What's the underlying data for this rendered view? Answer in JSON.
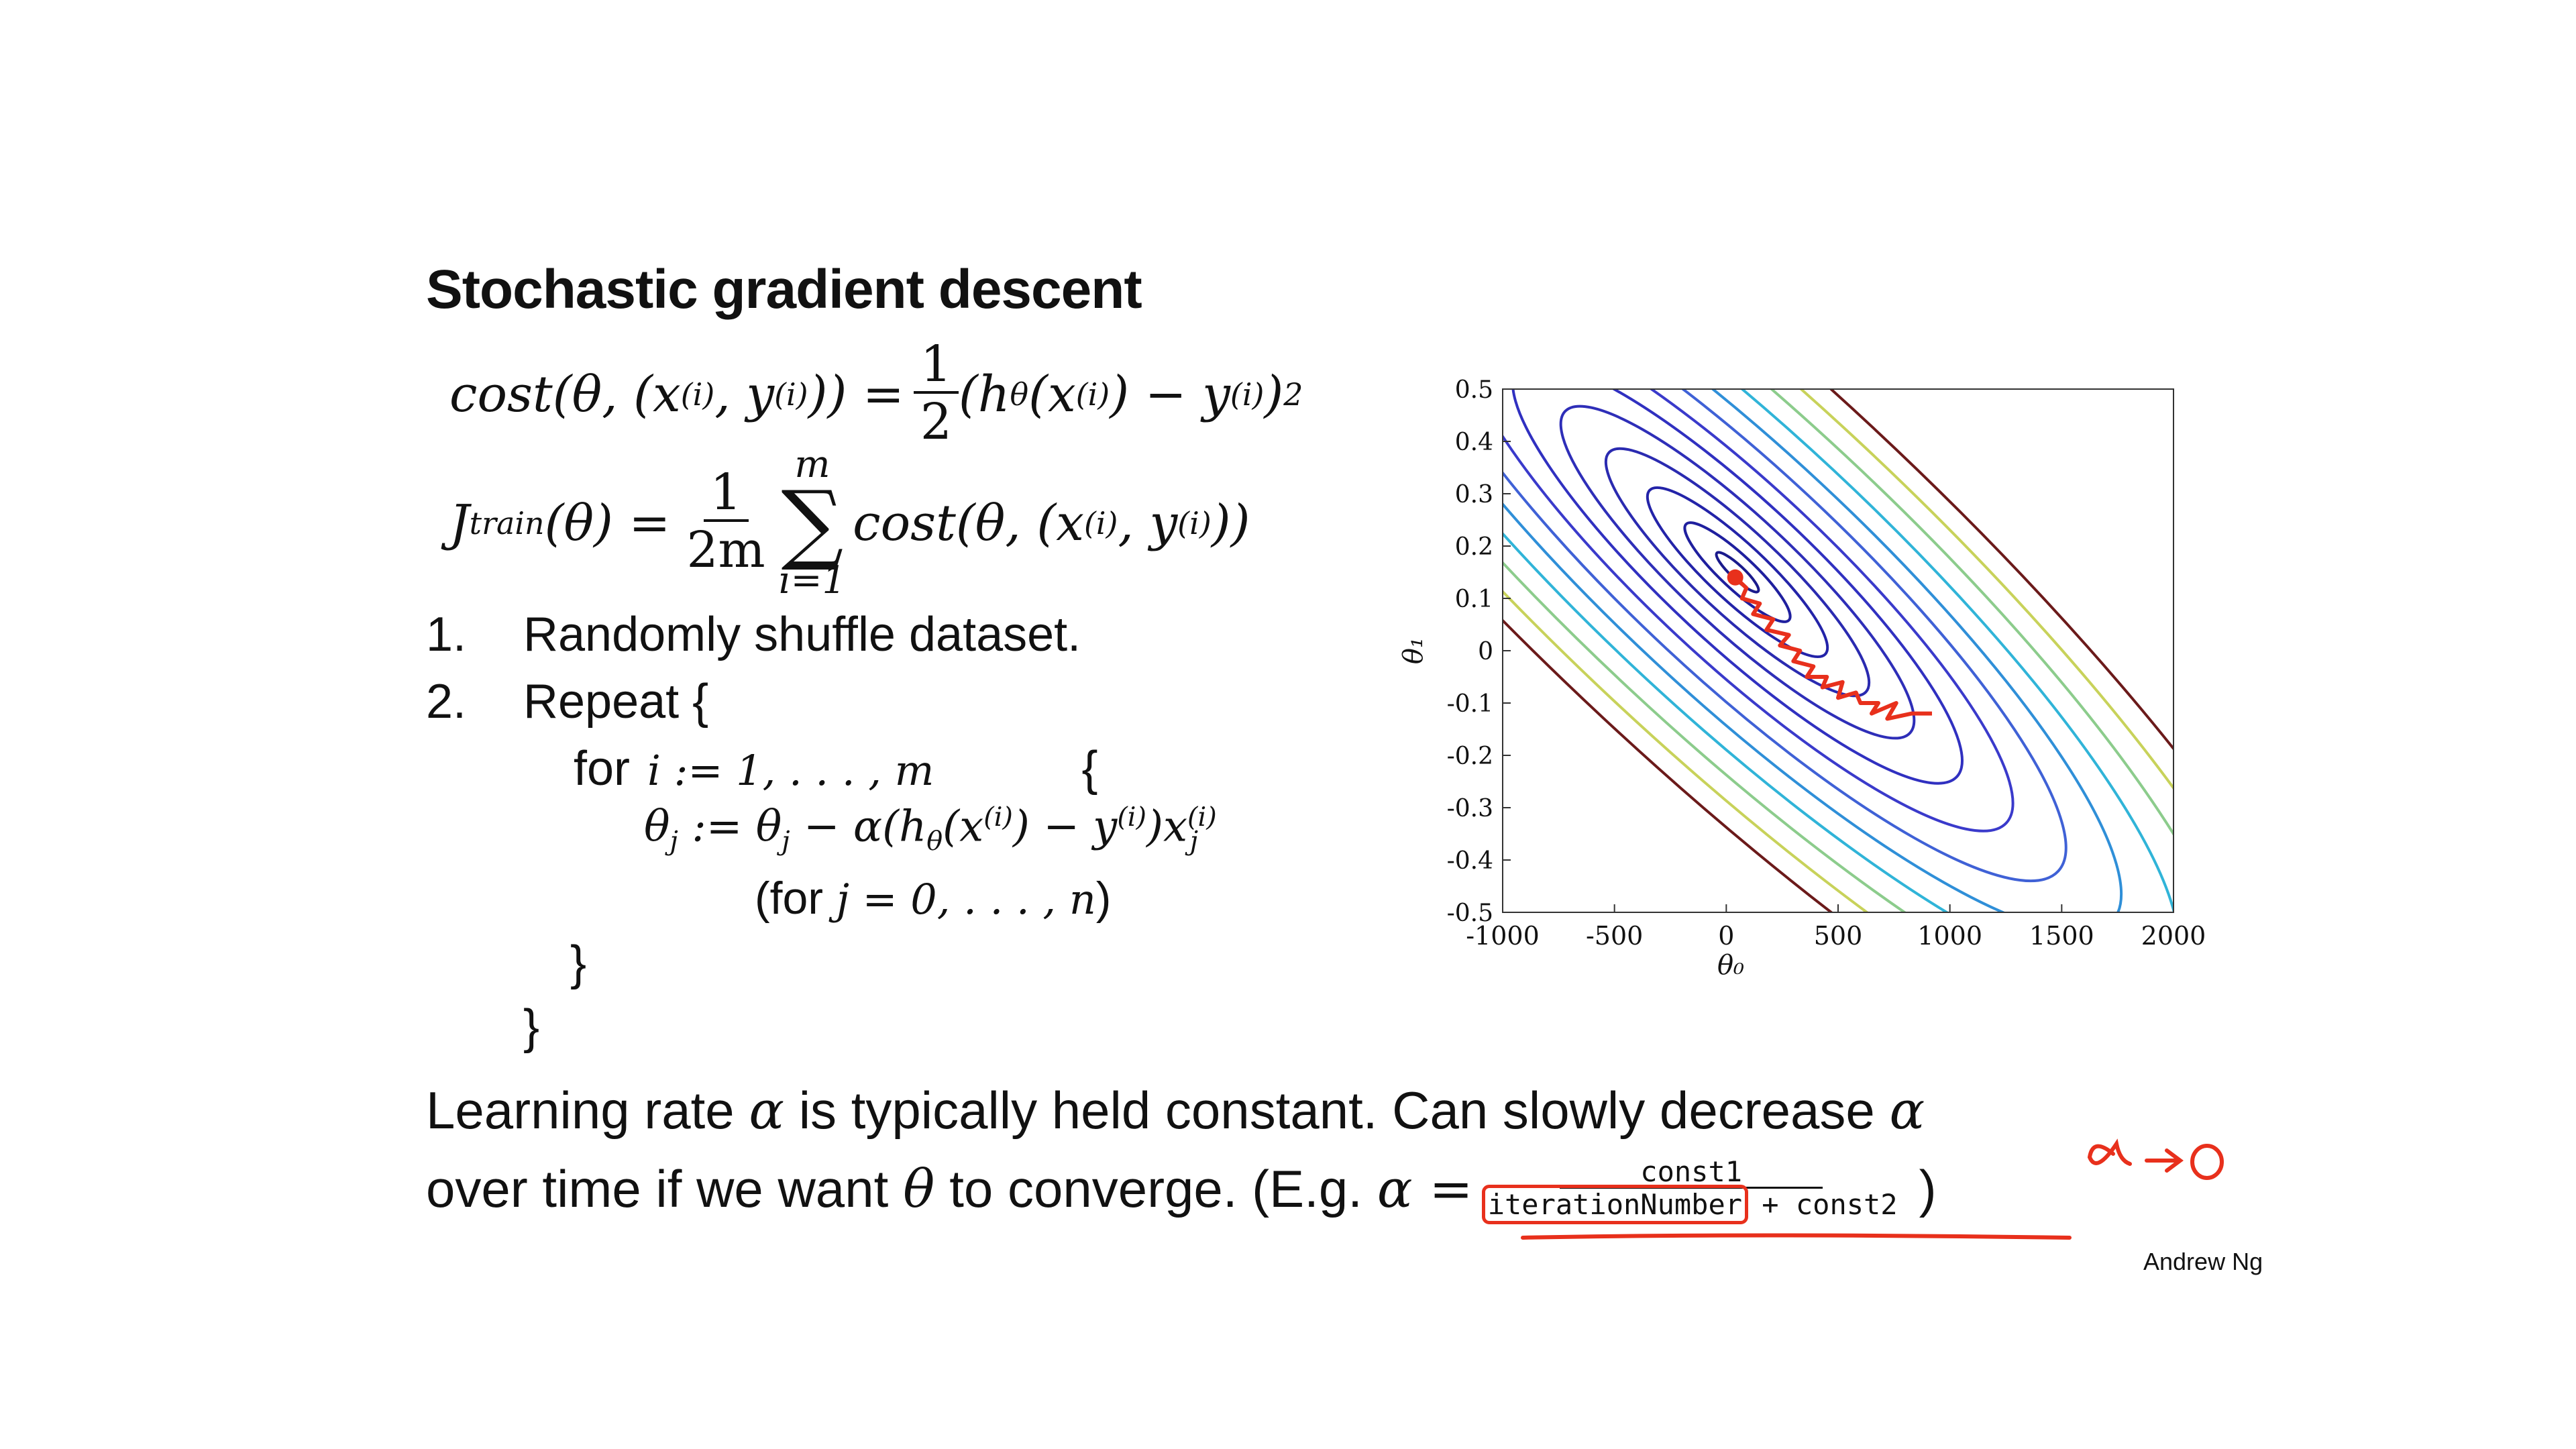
{
  "slide": {
    "title": "Stochastic gradient descent",
    "author": "Andrew Ng"
  },
  "equations": {
    "cost_lhs": "cost(θ, (x",
    "cost_lhs_tail": ")) =",
    "cost_sup_i": "(i)",
    "cost_y": ", y",
    "cost_half_num": "1",
    "cost_half_den": "2",
    "cost_rhs_a": "(h",
    "cost_theta_sub": "θ",
    "cost_rhs_b": "(x",
    "cost_rhs_c": ") − y",
    "cost_rhs_d": ")",
    "cost_sq": "2",
    "j_lhs": "J",
    "j_sub": "train",
    "j_lhs_b": "(θ) =",
    "j_frac_num": "1",
    "j_frac_den": "2m",
    "sum_top": "m",
    "sum_sym": "∑",
    "sum_bottom": "i=1",
    "j_rhs_a": "cost(θ, (x",
    "j_rhs_b": ", y",
    "j_rhs_c": "))"
  },
  "steps": {
    "step1_num": "1.",
    "step1_text": "Randomly shuffle dataset.",
    "step2_num": "2.",
    "step2_text": "Repeat {",
    "for_word": "for",
    "for_range": "i := 1, . . . , m",
    "for_brace": "{",
    "update_a": "θ",
    "update_j": "j",
    "update_b": " := θ",
    "update_c": " − α(h",
    "update_d": "(x",
    "update_e": ") − y",
    "update_f": ")x",
    "for_j_open": "(for",
    "for_j_math": " j = 0, . . . , n",
    "for_j_close": ")",
    "close_inner": "}",
    "close_outer": "}"
  },
  "bottom_text": {
    "line1_a": "Learning rate",
    "alpha": "α",
    "line1_b": "is typically held constant. Can slowly decrease",
    "line2_a": "over time if we want",
    "theta": "θ",
    "line2_b": "to converge. (E.g.",
    "alpha_eq": "α =",
    "numerator": "const1",
    "denominator_a": "iterationNumber",
    "denominator_b": " + const2",
    "close_paren": ")"
  },
  "annotation": {
    "handwritten": "α→0"
  },
  "chart_data": {
    "type": "contour",
    "xlabel": "θ₀",
    "ylabel": "θ₁",
    "xlim": [
      -1000,
      2000
    ],
    "ylim": [
      -0.5,
      0.5
    ],
    "x_ticks": [
      "-1000",
      "-500",
      "0",
      "500",
      "1000",
      "1500",
      "2000"
    ],
    "y_ticks": [
      "0.5",
      "0.4",
      "0.3",
      "0.2",
      "0.1",
      "0",
      "-0.1",
      "-0.2",
      "-0.3",
      "-0.4",
      "-0.5"
    ],
    "center": [
      50,
      0.15
    ],
    "colors": {
      "contours": [
        "#1a1a8c",
        "#1f1f9e",
        "#2323a8",
        "#2a2ab0",
        "#2e2eb8",
        "#3030c0",
        "#3a3acb",
        "#3f61d6",
        "#2f8fd8",
        "#30b4d8",
        "#8ccc8c",
        "#c8d25a",
        "#6b1a1a"
      ],
      "path": "#e8301c"
    },
    "sgd_path": [
      [
        40,
        0.14
      ],
      [
        90,
        0.12
      ],
      [
        70,
        0.1
      ],
      [
        150,
        0.09
      ],
      [
        120,
        0.07
      ],
      [
        210,
        0.06
      ],
      [
        180,
        0.04
      ],
      [
        280,
        0.03
      ],
      [
        240,
        0.01
      ],
      [
        330,
        0.0
      ],
      [
        300,
        -0.02
      ],
      [
        390,
        -0.03
      ],
      [
        360,
        -0.05
      ],
      [
        450,
        -0.05
      ],
      [
        430,
        -0.07
      ],
      [
        520,
        -0.06
      ],
      [
        500,
        -0.09
      ],
      [
        580,
        -0.08
      ],
      [
        600,
        -0.1
      ],
      [
        680,
        -0.1
      ],
      [
        650,
        -0.12
      ],
      [
        760,
        -0.1
      ],
      [
        720,
        -0.13
      ],
      [
        830,
        -0.12
      ],
      [
        920,
        -0.12
      ]
    ]
  }
}
